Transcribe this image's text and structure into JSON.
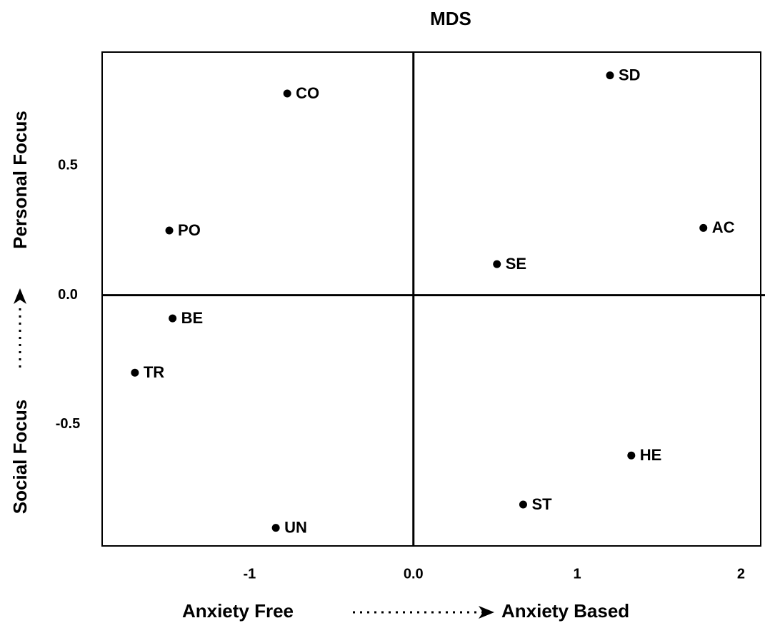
{
  "chart_data": {
    "type": "scatter",
    "title": "MDS",
    "x_label_left": "Anxiety Free",
    "x_label_right": "Anxiety Based",
    "y_label_bottom": "Social Focus",
    "y_label_top": "Personal Focus",
    "labels": [
      "CO",
      "SD",
      "PO",
      "AC",
      "SE",
      "BE",
      "TR",
      "HE",
      "ST",
      "UN"
    ],
    "x": [
      -0.77,
      1.2,
      -1.49,
      1.77,
      0.51,
      -1.47,
      -1.7,
      1.33,
      0.67,
      -0.84
    ],
    "values": [
      0.78,
      0.85,
      0.25,
      0.26,
      0.12,
      -0.09,
      -0.3,
      -0.62,
      -0.81,
      -0.9
    ],
    "color": "#000000",
    "xlim": [
      -1.9,
      2.12
    ],
    "xticks": [
      -1,
      {
        "value": 0,
        "label": "0.0"
      },
      1,
      2
    ],
    "ylim": [
      -0.97,
      0.94
    ],
    "yticks": [
      -0.5,
      {
        "value": 0,
        "label": "0.0"
      },
      0.5
    ],
    "grid": false
  }
}
